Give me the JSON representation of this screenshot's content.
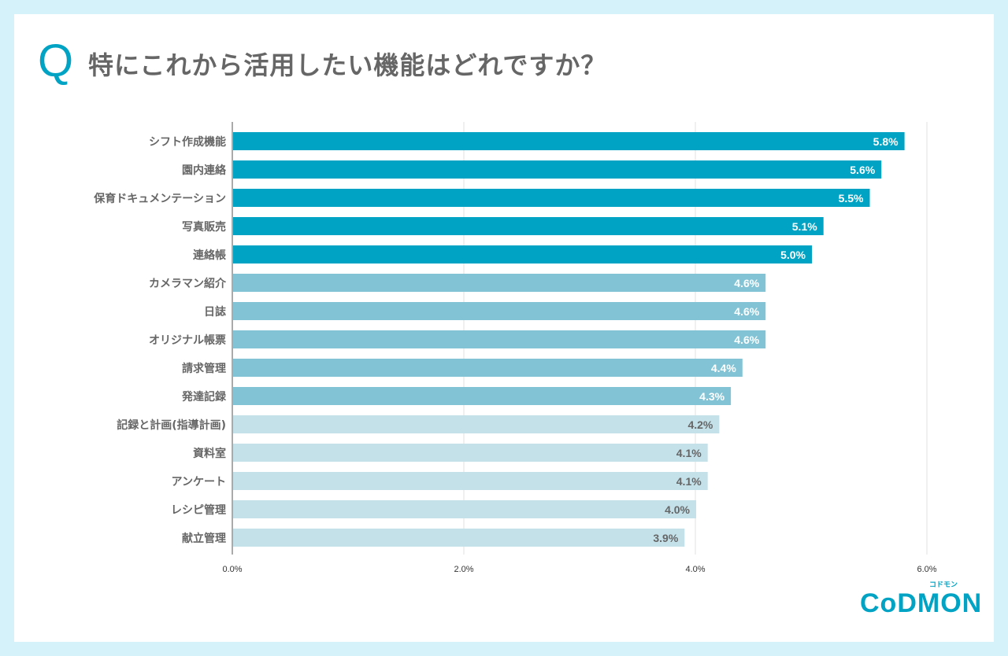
{
  "title_prefix": "Q",
  "title": "特にこれから活用したい機能はどれですか？",
  "logo": {
    "text": "CoDMON",
    "sub": "コドモン"
  },
  "chart_data": {
    "type": "bar",
    "orientation": "horizontal",
    "categories": [
      "シフト作成機能",
      "園内連絡",
      "保育ドキュメンテーション",
      "写真販売",
      "連絡帳",
      "カメラマン紹介",
      "日誌",
      "オリジナル帳票",
      "請求管理",
      "発達記録",
      "記録と計画(指導計画)",
      "資料室",
      "アンケート",
      "レシピ管理",
      "献立管理"
    ],
    "values": [
      5.8,
      5.6,
      5.5,
      5.1,
      5.0,
      4.6,
      4.6,
      4.6,
      4.4,
      4.3,
      4.2,
      4.1,
      4.1,
      4.0,
      3.9
    ],
    "data_labels": [
      "5.8%",
      "5.6%",
      "5.5%",
      "5.1%",
      "5.0%",
      "4.6%",
      "4.6%",
      "4.6%",
      "4.4%",
      "4.3%",
      "4.2%",
      "4.1%",
      "4.1%",
      "4.0%",
      "3.9%"
    ],
    "xlim": [
      0,
      6.5
    ],
    "ticks": [
      0,
      2,
      4,
      6
    ],
    "tick_labels": [
      "0.0%",
      "2.0%",
      "4.0%",
      "6.0%"
    ],
    "grid": true,
    "colors": {
      "top5": "#00a3c4",
      "mid5": "#82c4d6",
      "bottom5": "#c4e1ea",
      "label_dark_bg": "#ffffff",
      "label_light_bg": "#666666"
    }
  }
}
